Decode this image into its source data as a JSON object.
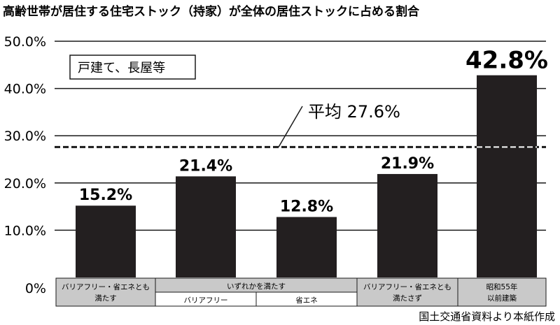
{
  "title": "高齢世帯が居住する住宅ストック（持家）が全体の居住ストックに占める割合",
  "source": "国土交通省資料より本紙作成",
  "colors": {
    "bar": "#231f20",
    "grid": "#1a1a1a",
    "category_box": "#c9c9c9",
    "sub_box": "#ffffff"
  },
  "chart_data": {
    "type": "bar",
    "title": "高齢世帯が居住する住宅ストック（持家）が全体の居住ストックに占める割合",
    "legend_box": "戸建て、長屋等",
    "ylim": [
      0,
      50
    ],
    "yticks": [
      "0%",
      "10.0%",
      "20.0%",
      "30.0%",
      "40.0%",
      "50.0%"
    ],
    "grid": true,
    "values": [
      15.2,
      21.4,
      12.8,
      21.9,
      42.8
    ],
    "value_labels": [
      "15.2%",
      "21.4%",
      "12.8%",
      "21.9%",
      "42.8%"
    ],
    "average": {
      "value": 27.6,
      "label": "平均 27.6%"
    },
    "category_labels": {
      "cat1": [
        "バリアフリー・省エネとも",
        "満たす"
      ],
      "group": "いずれかを満たす",
      "sub1": "バリアフリー",
      "sub2": "省エネ",
      "cat4": [
        "バリアフリー・省エネとも",
        "満たさず"
      ],
      "cat5": [
        "昭和55年",
        "以前建築"
      ]
    }
  }
}
